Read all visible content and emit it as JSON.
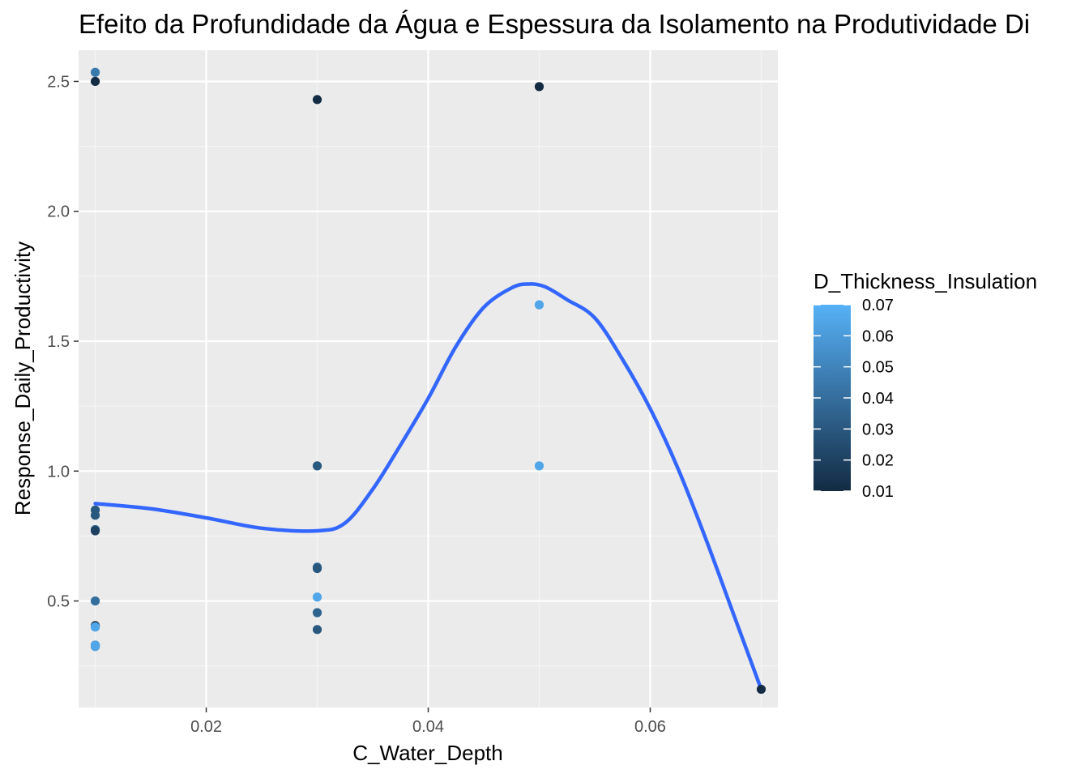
{
  "chart_data": {
    "type": "scatter",
    "title": "Efeito da Profundidade da Água e Espessura da Isolamento na Produtividade Di",
    "xlabel": "C_Water_Depth",
    "ylabel": "Response_Daily_Productivity",
    "xlim": [
      0.0085,
      0.0715
    ],
    "ylim": [
      0.09,
      2.62
    ],
    "x_ticks": [
      0.02,
      0.04,
      0.06
    ],
    "x_tick_labels": [
      "0.02",
      "0.04",
      "0.06"
    ],
    "y_ticks": [
      0.5,
      1.0,
      1.5,
      2.0,
      2.5
    ],
    "y_tick_labels": [
      "0.5",
      "1.0",
      "1.5",
      "2.0",
      "2.5"
    ],
    "grid": true,
    "legend": {
      "title": "D_Thickness_Insulation",
      "placement": "right",
      "type": "colorbar",
      "min": 0.01,
      "max": 0.07,
      "labels": [
        "0.07",
        "0.06",
        "0.05",
        "0.04",
        "0.03",
        "0.02",
        "0.01"
      ],
      "low_color": "#132B43",
      "high_color": "#56B1F7"
    },
    "series": [
      {
        "kind": "points",
        "x": [
          0.01,
          0.01,
          0.01,
          0.01,
          0.01,
          0.01,
          0.01,
          0.01,
          0.01,
          0.01,
          0.01,
          0.01,
          0.01,
          0.01,
          0.03,
          0.03,
          0.03,
          0.03,
          0.03,
          0.03,
          0.03,
          0.05,
          0.05,
          0.05,
          0.07
        ],
        "y": [
          2.535,
          2.5,
          0.85,
          0.83,
          0.775,
          0.77,
          0.5,
          0.405,
          0.4,
          0.4,
          0.33,
          0.325,
          0.33,
          0.325,
          2.43,
          1.02,
          0.63,
          0.625,
          0.515,
          0.455,
          0.39,
          2.48,
          1.64,
          1.02,
          0.16
        ],
        "color_value": [
          0.045,
          0.01,
          0.03,
          0.03,
          0.035,
          0.02,
          0.04,
          0.01,
          0.06,
          0.065,
          0.01,
          0.01,
          0.065,
          0.065,
          0.01,
          0.03,
          0.035,
          0.03,
          0.065,
          0.035,
          0.03,
          0.01,
          0.065,
          0.065,
          0.01
        ]
      },
      {
        "kind": "smooth",
        "color": "#3366FF",
        "x": [
          0.01,
          0.015,
          0.02,
          0.025,
          0.03,
          0.0325,
          0.035,
          0.0375,
          0.04,
          0.0425,
          0.045,
          0.0475,
          0.049,
          0.0505,
          0.0525,
          0.055,
          0.0575,
          0.06,
          0.0625,
          0.065,
          0.0675,
          0.07
        ],
        "y": [
          0.875,
          0.855,
          0.82,
          0.78,
          0.77,
          0.8,
          0.93,
          1.1,
          1.28,
          1.48,
          1.63,
          1.705,
          1.72,
          1.71,
          1.66,
          1.59,
          1.43,
          1.24,
          1.01,
          0.74,
          0.45,
          0.16
        ]
      }
    ]
  }
}
